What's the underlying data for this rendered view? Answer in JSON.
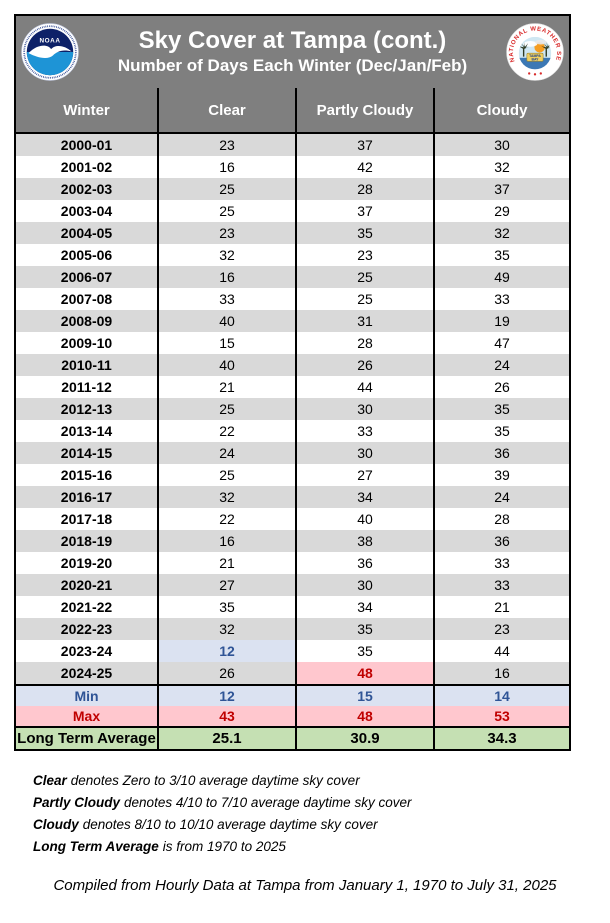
{
  "header": {
    "title": "Sky Cover at Tampa (cont.)",
    "subtitle": "Number of Days Each Winter (Dec/Jan/Feb)",
    "noaa_logo_label": "NOAA",
    "nws_ring_text": "NATIONAL WEATHER SERVICE",
    "nws_center_line1": "TAMPA",
    "nws_center_line2": "BAY"
  },
  "table": {
    "columns": [
      "Winter",
      "Clear",
      "Partly Cloudy",
      "Cloudy"
    ],
    "rows": [
      {
        "winter": "2000-01",
        "values": [
          "23",
          "37",
          "30"
        ]
      },
      {
        "winter": "2001-02",
        "values": [
          "16",
          "42",
          "32"
        ]
      },
      {
        "winter": "2002-03",
        "values": [
          "25",
          "28",
          "37"
        ]
      },
      {
        "winter": "2003-04",
        "values": [
          "25",
          "37",
          "29"
        ]
      },
      {
        "winter": "2004-05",
        "values": [
          "23",
          "35",
          "32"
        ]
      },
      {
        "winter": "2005-06",
        "values": [
          "32",
          "23",
          "35"
        ]
      },
      {
        "winter": "2006-07",
        "values": [
          "16",
          "25",
          "49"
        ]
      },
      {
        "winter": "2007-08",
        "values": [
          "33",
          "25",
          "33"
        ]
      },
      {
        "winter": "2008-09",
        "values": [
          "40",
          "31",
          "19"
        ]
      },
      {
        "winter": "2009-10",
        "values": [
          "15",
          "28",
          "47"
        ]
      },
      {
        "winter": "2010-11",
        "values": [
          "40",
          "26",
          "24"
        ]
      },
      {
        "winter": "2011-12",
        "values": [
          "21",
          "44",
          "26"
        ]
      },
      {
        "winter": "2012-13",
        "values": [
          "25",
          "30",
          "35"
        ]
      },
      {
        "winter": "2013-14",
        "values": [
          "22",
          "33",
          "35"
        ]
      },
      {
        "winter": "2014-15",
        "values": [
          "24",
          "30",
          "36"
        ]
      },
      {
        "winter": "2015-16",
        "values": [
          "25",
          "27",
          "39"
        ]
      },
      {
        "winter": "2016-17",
        "values": [
          "32",
          "34",
          "24"
        ]
      },
      {
        "winter": "2017-18",
        "values": [
          "22",
          "40",
          "28"
        ]
      },
      {
        "winter": "2018-19",
        "values": [
          "16",
          "38",
          "36"
        ]
      },
      {
        "winter": "2019-20",
        "values": [
          "21",
          "36",
          "33"
        ]
      },
      {
        "winter": "2020-21",
        "values": [
          "27",
          "30",
          "33"
        ]
      },
      {
        "winter": "2021-22",
        "values": [
          "35",
          "34",
          "21"
        ]
      },
      {
        "winter": "2022-23",
        "values": [
          "32",
          "35",
          "23"
        ]
      },
      {
        "winter": "2023-24",
        "values": [
          "12",
          "35",
          "44"
        ],
        "highlight": {
          "0": "min"
        }
      },
      {
        "winter": "2024-25",
        "values": [
          "26",
          "48",
          "16"
        ],
        "highlight": {
          "1": "max"
        }
      }
    ],
    "summary": [
      {
        "label": "Min",
        "values": [
          "12",
          "15",
          "14"
        ],
        "style": "min"
      },
      {
        "label": "Max",
        "values": [
          "43",
          "48",
          "53"
        ],
        "style": "max"
      },
      {
        "label": "Long Term Average",
        "values": [
          "25.1",
          "30.9",
          "34.3"
        ],
        "style": "avg"
      }
    ]
  },
  "footnotes": [
    {
      "term": "Clear",
      "text": "denotes Zero to 3/10 average daytime sky cover"
    },
    {
      "term": "Partly Cloudy",
      "text": "denotes 4/10 to 7/10 average daytime sky cover"
    },
    {
      "term": "Cloudy",
      "text": "denotes 8/10 to 10/10 average daytime sky cover"
    },
    {
      "term": "Long Term Average",
      "text": "is from 1970 to 2025"
    }
  ],
  "compiled_note": "Compiled from Hourly Data at Tampa from January 1, 1970 to July 31, 2025",
  "colors": {
    "banner_bg": "#7f7f7f",
    "row_stripe": "#d9d9d9",
    "min_bg": "#dbe2f1",
    "min_text": "#2f5496",
    "max_bg": "#ffc7ce",
    "max_text": "#c00000",
    "avg_bg": "#c5e0b3",
    "border": "#000000"
  },
  "chart_data": {
    "type": "table",
    "title": "Sky Cover at Tampa (cont.)",
    "subtitle": "Number of Days Each Winter (Dec/Jan/Feb)",
    "columns": [
      "Winter",
      "Clear",
      "Partly Cloudy",
      "Cloudy"
    ],
    "rows": [
      [
        "2000-01",
        23,
        37,
        30
      ],
      [
        "2001-02",
        16,
        42,
        32
      ],
      [
        "2002-03",
        25,
        28,
        37
      ],
      [
        "2003-04",
        25,
        37,
        29
      ],
      [
        "2004-05",
        23,
        35,
        32
      ],
      [
        "2005-06",
        32,
        23,
        35
      ],
      [
        "2006-07",
        16,
        25,
        49
      ],
      [
        "2007-08",
        33,
        25,
        33
      ],
      [
        "2008-09",
        40,
        31,
        19
      ],
      [
        "2009-10",
        15,
        28,
        47
      ],
      [
        "2010-11",
        40,
        26,
        24
      ],
      [
        "2011-12",
        21,
        44,
        26
      ],
      [
        "2012-13",
        25,
        30,
        35
      ],
      [
        "2013-14",
        22,
        33,
        35
      ],
      [
        "2014-15",
        24,
        30,
        36
      ],
      [
        "2015-16",
        25,
        27,
        39
      ],
      [
        "2016-17",
        32,
        34,
        24
      ],
      [
        "2017-18",
        22,
        40,
        28
      ],
      [
        "2018-19",
        16,
        38,
        36
      ],
      [
        "2019-20",
        21,
        36,
        33
      ],
      [
        "2020-21",
        27,
        30,
        33
      ],
      [
        "2021-22",
        35,
        34,
        21
      ],
      [
        "2022-23",
        32,
        35,
        23
      ],
      [
        "2023-24",
        12,
        35,
        44
      ],
      [
        "2024-25",
        26,
        48,
        16
      ]
    ],
    "min": [
      12,
      15,
      14
    ],
    "max": [
      43,
      48,
      53
    ],
    "long_term_average": [
      25.1,
      30.9,
      34.3
    ],
    "highlighted_cells": [
      {
        "row": "2023-24",
        "column": "Clear",
        "value": 12,
        "style": "min"
      },
      {
        "row": "2024-25",
        "column": "Partly Cloudy",
        "value": 48,
        "style": "max"
      }
    ]
  }
}
